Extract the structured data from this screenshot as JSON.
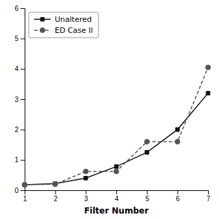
{
  "chart_data": {
    "type": "line",
    "x": [
      1,
      2,
      3,
      4,
      5,
      6,
      7
    ],
    "xlabel": "Filter Number",
    "xlim": [
      1,
      7
    ],
    "ylim": [
      0,
      6
    ],
    "xticks": [
      1,
      2,
      3,
      4,
      5,
      6,
      7
    ],
    "yticks": [
      0,
      1,
      2,
      3,
      4,
      5,
      6
    ],
    "grid": false,
    "legend": "upper left",
    "series": [
      {
        "name": "Unaltered",
        "color": "#111111",
        "marker": "square",
        "line_style": "solid",
        "values": [
          0.18,
          0.22,
          0.4,
          0.78,
          1.25,
          2.0,
          3.2
        ]
      },
      {
        "name": "ED Case II",
        "color": "#555555",
        "marker": "circle",
        "line_style": "dashed",
        "values": [
          0.18,
          0.2,
          0.62,
          0.62,
          1.6,
          1.6,
          4.05
        ]
      }
    ]
  }
}
